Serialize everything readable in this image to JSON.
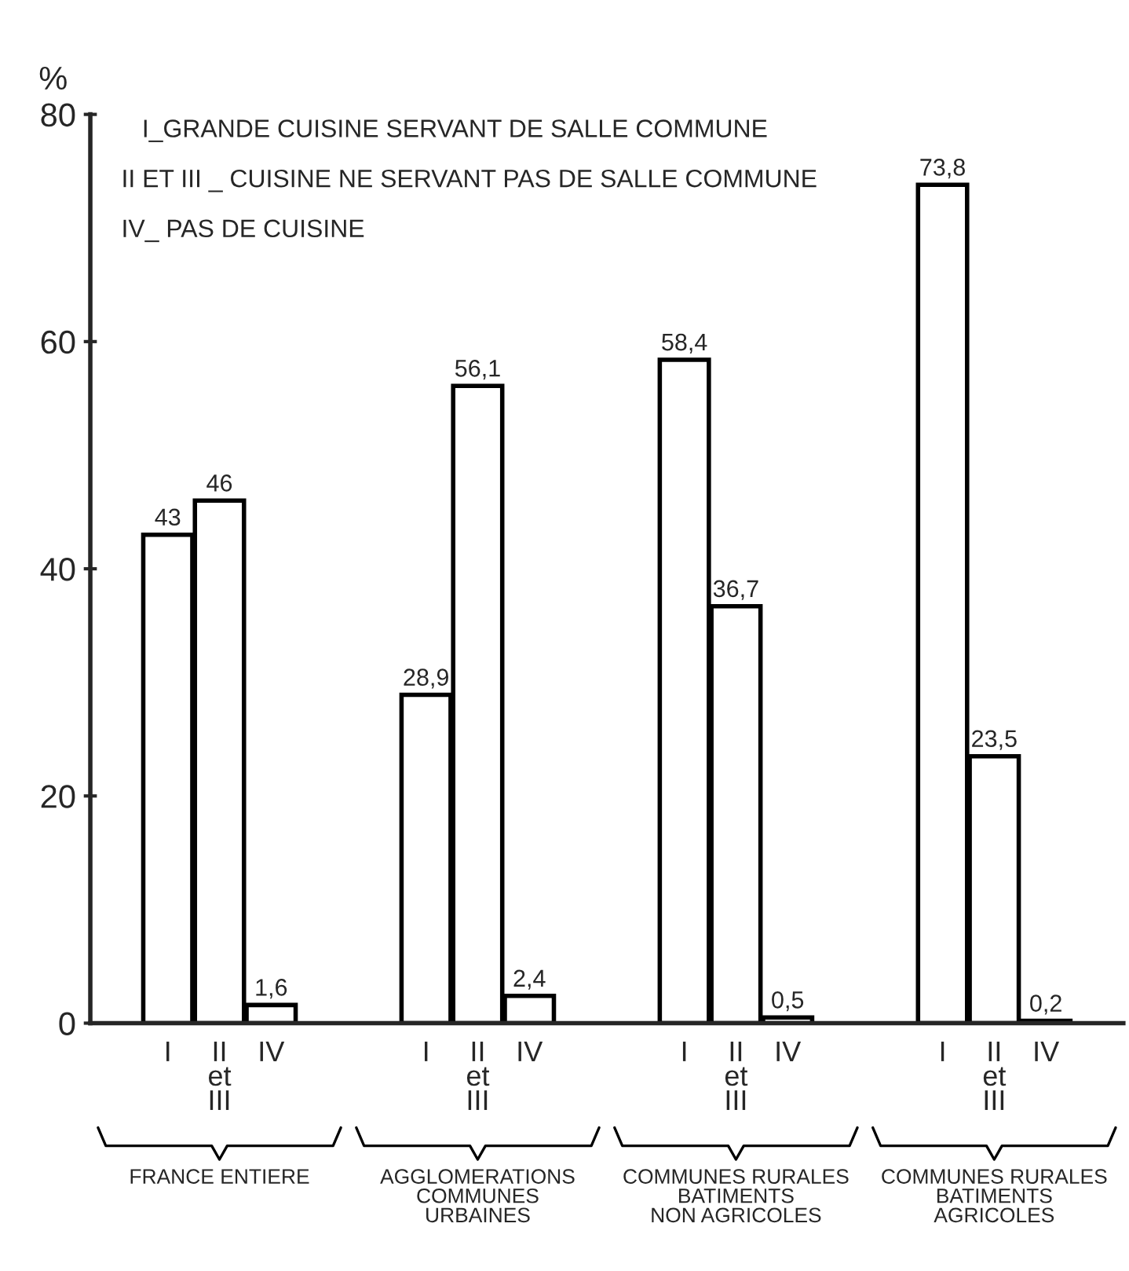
{
  "chart_data": {
    "type": "bar",
    "categories": [
      "FRANCE ENTIERE",
      "AGGLOMERATIONS\nCOMMUNES\nURBAINES",
      "COMMUNES RURALES\nBATIMENTS\nNON AGRICOLES",
      "COMMUNES RURALES\nBATIMENTS\nAGRICOLES"
    ],
    "series": [
      {
        "name": "I",
        "color": "#ffffff",
        "values": [
          43,
          28.9,
          58.4,
          73.8
        ],
        "value_labels": [
          "43",
          "28,9",
          "58,4",
          "73,8"
        ]
      },
      {
        "name": "II\net\nIII",
        "color": "#ffffff",
        "values": [
          46,
          56.1,
          36.7,
          23.5
        ],
        "value_labels": [
          "46",
          "56,1",
          "36,7",
          "23,5"
        ]
      },
      {
        "name": "IV",
        "color": "#ffffff",
        "values": [
          1.6,
          2.4,
          0.5,
          0.2
        ],
        "value_labels": [
          "1,6",
          "2,4",
          "0,5",
          "0,2"
        ]
      }
    ],
    "ylabel": "%",
    "ylim": [
      0,
      80
    ],
    "yticks": [
      0,
      20,
      40,
      60,
      80
    ],
    "annotations": [
      "I_GRANDE CUISINE SERVANT DE SALLE COMMUNE",
      "II ET III _ CUISINE NE SERVANT PAS DE SALLE COMMUNE",
      "IV_ PAS DE CUISINE"
    ],
    "grid": false,
    "legend": false
  }
}
